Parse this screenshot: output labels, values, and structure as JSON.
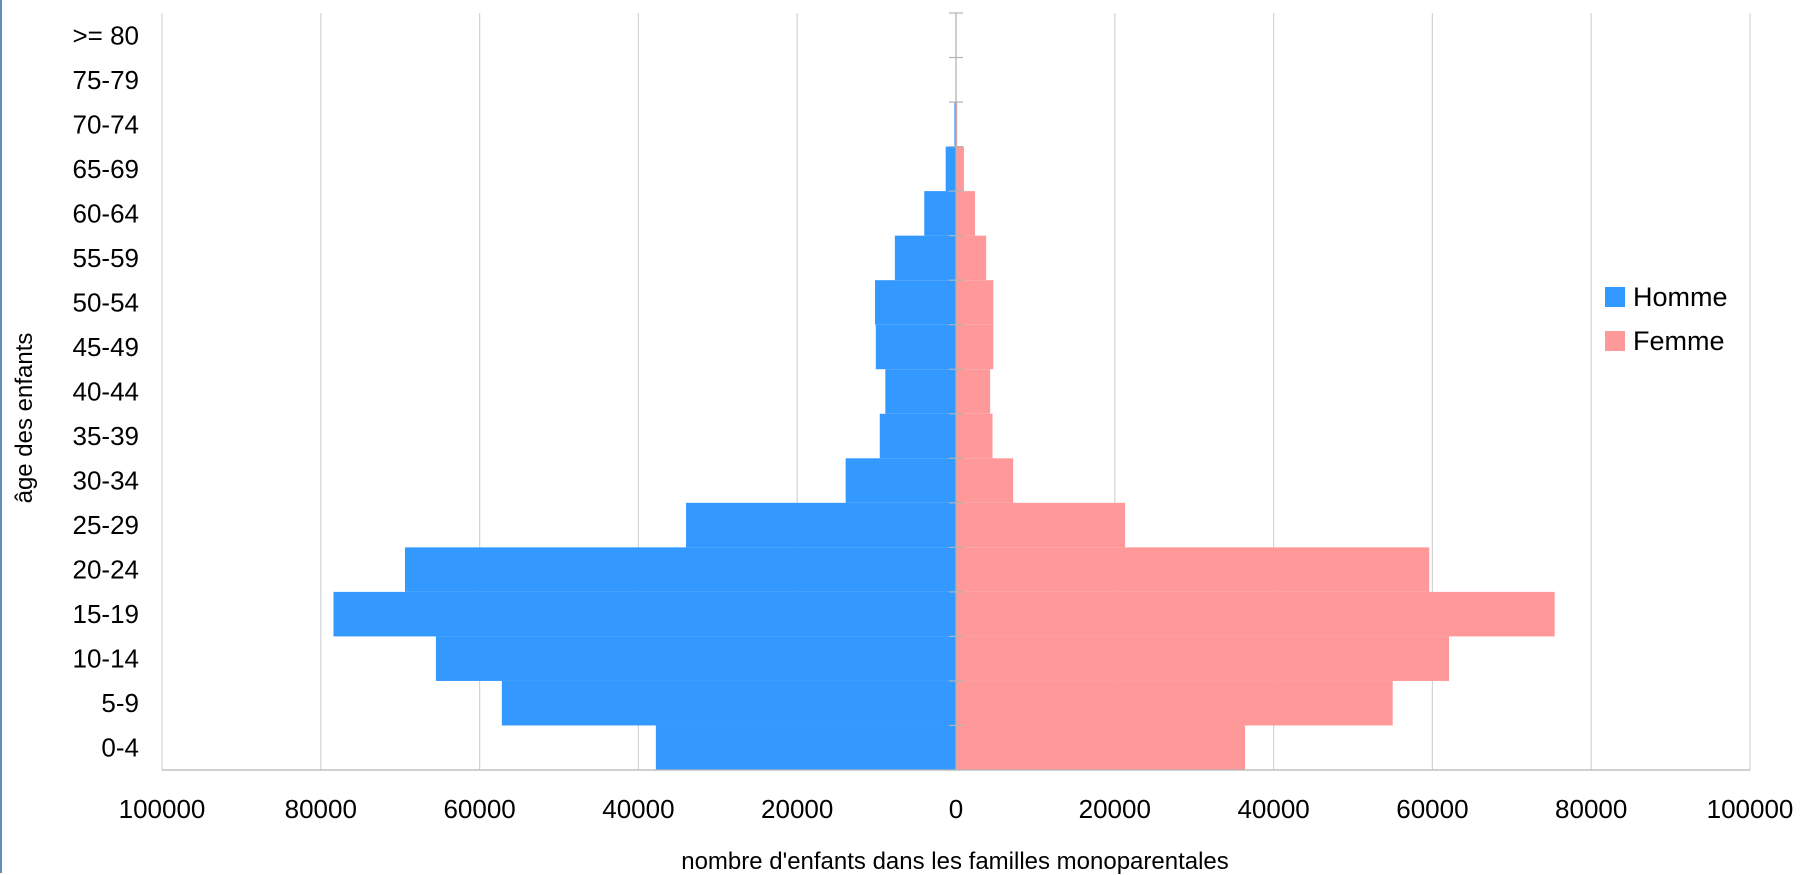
{
  "chart_data": {
    "type": "bar",
    "orientation": "horizontal",
    "layout": "population-pyramid",
    "categories": [
      "0-4",
      "5-9",
      "10-14",
      "15-19",
      "20-24",
      "25-29",
      "30-34",
      "35-39",
      "40-44",
      "45-49",
      "50-54",
      "55-59",
      "60-64",
      "65-69",
      "70-74",
      "75-79",
      ">= 80"
    ],
    "series": [
      {
        "name": "Homme",
        "color": "#3399ff",
        "side": "left",
        "values": [
          37800,
          57200,
          65500,
          78400,
          69400,
          34000,
          13900,
          9600,
          8900,
          10100,
          10200,
          7700,
          4000,
          1300,
          200,
          50,
          20
        ]
      },
      {
        "name": "Femme",
        "color": "#ff9999",
        "side": "right",
        "values": [
          36400,
          55000,
          62100,
          75400,
          59600,
          21300,
          7200,
          4600,
          4300,
          4700,
          4700,
          3800,
          2400,
          1000,
          150,
          40,
          10
        ]
      }
    ],
    "xlabel": "nombre d'enfants dans les familles monoparentales",
    "ylabel": "âge des enfants",
    "xlim": [
      -100000,
      100000
    ],
    "xticks": [
      "100000",
      "80000",
      "60000",
      "40000",
      "20000",
      "0",
      "20000",
      "40000",
      "60000",
      "80000",
      "100000"
    ],
    "grid": "vertical",
    "legend_position": "right"
  }
}
